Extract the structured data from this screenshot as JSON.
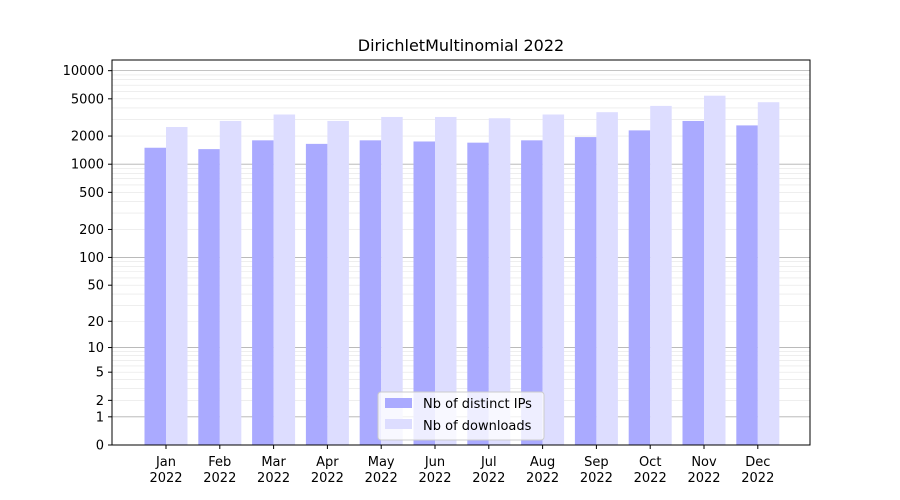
{
  "chart_data": {
    "type": "bar",
    "title": "DirichletMultinomial 2022",
    "xlabel": "",
    "ylabel": "",
    "yscale": "symlog",
    "ylim": [
      0,
      13000
    ],
    "y_ticks": [
      0,
      1,
      2,
      5,
      10,
      20,
      50,
      100,
      200,
      500,
      1000,
      2000,
      5000,
      10000
    ],
    "y_tick_labels": [
      "0",
      "1",
      "2",
      "5",
      "10",
      "20",
      "50",
      "100",
      "200",
      "500",
      "1000",
      "2000",
      "5000",
      "10000"
    ],
    "grid": "horizontal",
    "legend_position": "bottom-center",
    "categories": [
      [
        "Jan",
        "2022"
      ],
      [
        "Feb",
        "2022"
      ],
      [
        "Mar",
        "2022"
      ],
      [
        "Apr",
        "2022"
      ],
      [
        "May",
        "2022"
      ],
      [
        "Jun",
        "2022"
      ],
      [
        "Jul",
        "2022"
      ],
      [
        "Aug",
        "2022"
      ],
      [
        "Sep",
        "2022"
      ],
      [
        "Oct",
        "2022"
      ],
      [
        "Nov",
        "2022"
      ],
      [
        "Dec",
        "2022"
      ]
    ],
    "series": [
      {
        "name": "Nb of distinct IPs",
        "color": "#aaaaff",
        "values": [
          1500,
          1450,
          1800,
          1650,
          1800,
          1750,
          1700,
          1800,
          1950,
          2300,
          2900,
          2600
        ]
      },
      {
        "name": "Nb of downloads",
        "color": "#ddddff",
        "values": [
          2500,
          2900,
          3400,
          2900,
          3200,
          3200,
          3100,
          3400,
          3600,
          4200,
          5400,
          4600
        ]
      }
    ]
  }
}
